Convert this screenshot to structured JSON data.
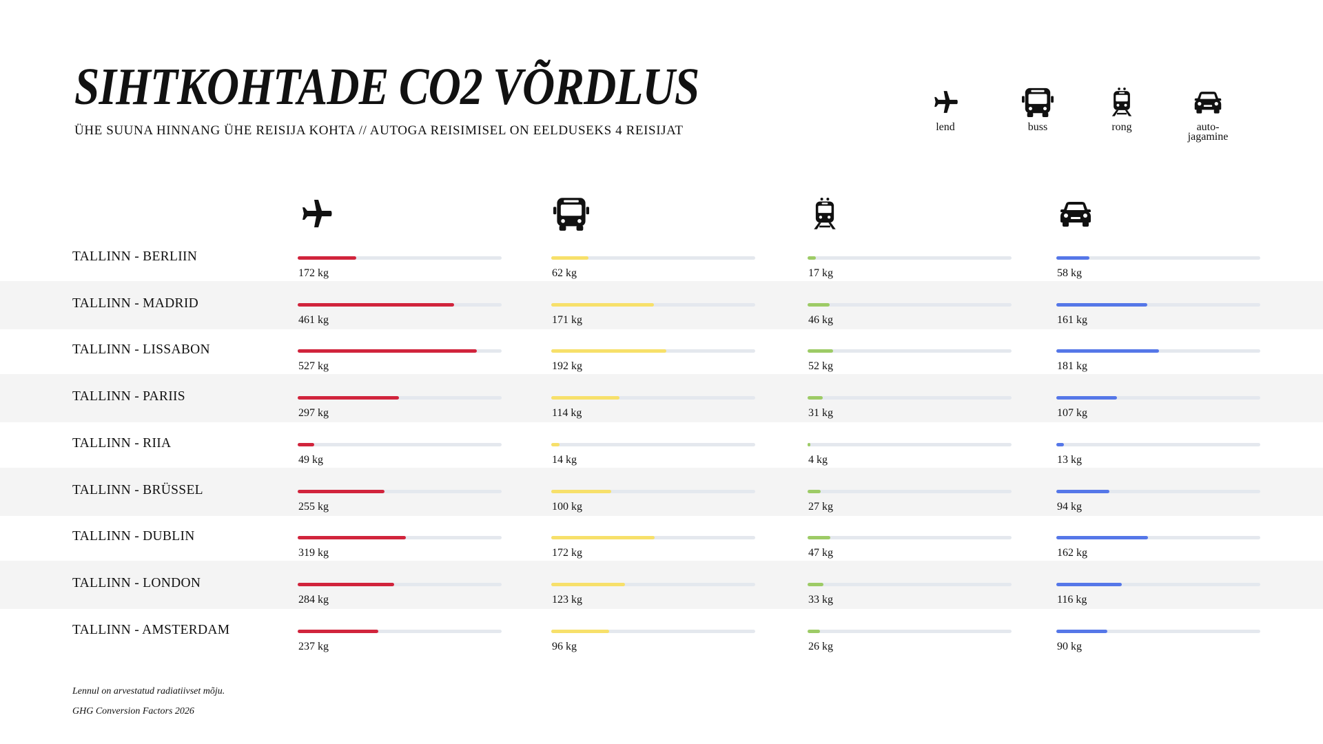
{
  "title": "SIHTKOHTADE CO2 VÕRDLUS",
  "subtitle": "ÜHE SUUNA HINNANG ÜHE REISIJA KOHTA // AUTOGA REISIMISEL ON EELDUSEKS 4 REISIJAT",
  "legend": [
    {
      "icon": "plane-icon",
      "label_lines": [
        "lend"
      ]
    },
    {
      "icon": "bus-icon",
      "label_lines": [
        "buss"
      ]
    },
    {
      "icon": "train-icon",
      "label_lines": [
        "rong"
      ]
    },
    {
      "icon": "car-icon",
      "label_lines": [
        "auto-",
        "jagamine"
      ]
    }
  ],
  "colors": {
    "lend": "#d1243c",
    "buss": "#f7e06a",
    "rong": "#9dcb66",
    "autojagamine": "#5577e8",
    "track": "#e4e8ee",
    "band": "#f4f4f4"
  },
  "chart_data": {
    "type": "bar",
    "orientation": "horizontal",
    "unit": "kg",
    "categories": [
      "TALLINN - BERLIIN",
      "TALLINN - MADRID",
      "TALLINN - LISSABON",
      "TALLINN - PARIIS",
      "TALLINN - RIIA",
      "TALLINN - BRÜSSEL",
      "TALLINN - DUBLIN",
      "TALLINN - LONDON",
      "TALLINN - AMSTERDAM"
    ],
    "series": [
      {
        "icon": "plane-icon",
        "color": "#d1243c",
        "max": 600,
        "values": [
          172,
          461,
          527,
          297,
          49,
          255,
          319,
          284,
          237
        ]
      },
      {
        "icon": "bus-icon",
        "color": "#f7e06a",
        "max": 340,
        "values": [
          62,
          171,
          192,
          114,
          14,
          100,
          172,
          123,
          96
        ]
      },
      {
        "icon": "train-icon",
        "color": "#9dcb66",
        "max": 420,
        "values": [
          17,
          46,
          52,
          31,
          4,
          27,
          47,
          33,
          26
        ]
      },
      {
        "icon": "car-icon",
        "color": "#5577e8",
        "max": 360,
        "values": [
          58,
          161,
          181,
          107,
          13,
          94,
          162,
          116,
          90
        ]
      }
    ]
  },
  "footnotes": [
    "Lennul on arvestatud radiatiivset mõju.",
    "GHG Conversion Factors 2026"
  ]
}
